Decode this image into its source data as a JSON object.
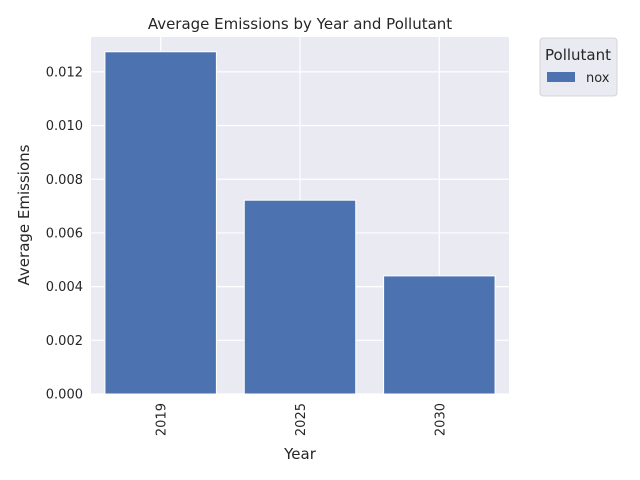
{
  "chart_data": {
    "type": "bar",
    "title": "Average Emissions by Year and Pollutant",
    "xlabel": "Year",
    "ylabel": "Average Emissions",
    "categories": [
      "2019",
      "2025",
      "2030"
    ],
    "series": [
      {
        "name": "nox",
        "values": [
          0.01275,
          0.00722,
          0.0044
        ]
      }
    ],
    "ylim": [
      0,
      0.0133
    ],
    "yticks": [
      "0.000",
      "0.002",
      "0.004",
      "0.006",
      "0.008",
      "0.010",
      "0.012"
    ],
    "grid": true,
    "legend": {
      "title": "Pollutant",
      "placement": "outside-top-right"
    },
    "colors": {
      "bar": "#4c72b0",
      "background": "#eaeaf2",
      "grid": "#ffffff"
    }
  }
}
